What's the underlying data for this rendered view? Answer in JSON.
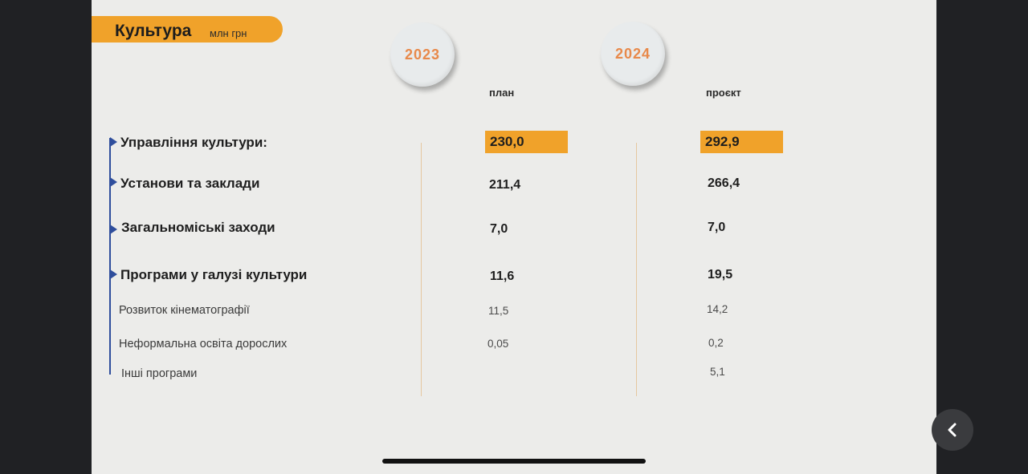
{
  "slide": {
    "title": "Культура",
    "unit": "млн грн",
    "years": [
      {
        "year": "2023",
        "column_label": "план"
      },
      {
        "year": "2024",
        "column_label": "проєкт"
      }
    ],
    "rows": [
      {
        "label": "Управління культури:",
        "v2023": "230,0",
        "v2024": "292,9"
      },
      {
        "label": "Установи та заклади",
        "v2023": "211,4",
        "v2024": "266,4"
      },
      {
        "label": "Загальноміські заходи",
        "v2023": "7,0",
        "v2024": "7,0"
      },
      {
        "label": "Програми у галузі культури",
        "v2023": "11,6",
        "v2024": "19,5"
      },
      {
        "label": "Розвиток кінематографії",
        "v2023": "11,5",
        "v2024": "14,2"
      },
      {
        "label": "Неформальна освіта дорослих",
        "v2023": "0,05",
        "v2024": "0,2"
      },
      {
        "label": "Інші програми",
        "v2023": "",
        "v2024": "5,1"
      }
    ]
  },
  "controls": {
    "back_icon": "chevron-left-icon"
  },
  "colors": {
    "accent": "#f0a22a",
    "year_text": "#e8894a",
    "marker": "#2f4e9c"
  }
}
